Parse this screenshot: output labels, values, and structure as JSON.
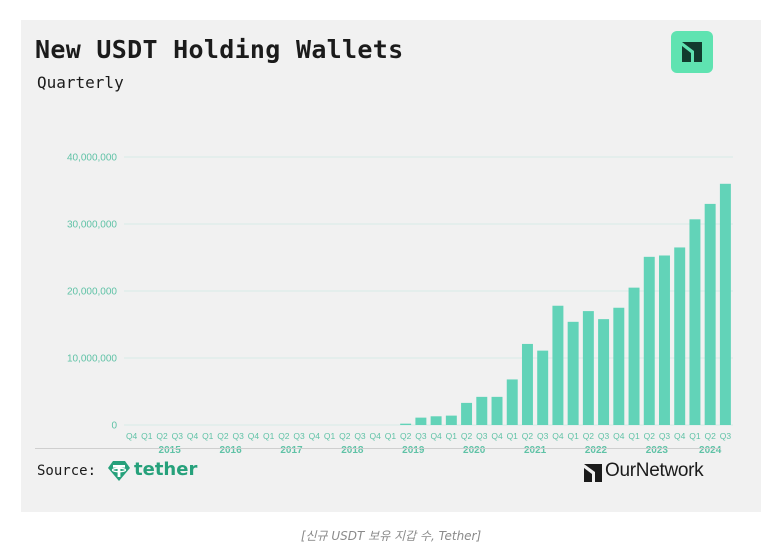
{
  "header": {
    "title": "New USDT Holding Wallets",
    "subtitle": "Quarterly",
    "logo_icon": "ournetwork-logo-icon"
  },
  "footer": {
    "source_label": "Source:",
    "source_brand": "tether",
    "source_icon": "tether-logo-icon",
    "publisher": "OurNetwork",
    "publisher_icon": "ournetwork-logo-icon"
  },
  "caption": "[신규 USDT 보유 지갑 수, Tether]",
  "colors": {
    "bar": "#62d3b8",
    "gridline": "#d7ece6",
    "tick": "#5fc2a6",
    "badge": "#5fe3b1",
    "tether_green": "#26a17b"
  },
  "chart_data": {
    "type": "bar",
    "title": "New USDT Holding Wallets",
    "subtitle": "Quarterly",
    "ylim": [
      0,
      40000000
    ],
    "yticks": [
      0,
      10000000,
      20000000,
      30000000,
      40000000
    ],
    "ytick_labels": [
      "0",
      "10,000,000",
      "20,000,000",
      "30,000,000",
      "40,000,000"
    ],
    "grid": true,
    "categories": [
      "Q4",
      "Q1",
      "Q2",
      "Q3",
      "Q4",
      "Q1",
      "Q2",
      "Q3",
      "Q4",
      "Q1",
      "Q2",
      "Q3",
      "Q4",
      "Q1",
      "Q2",
      "Q3",
      "Q4",
      "Q1",
      "Q2",
      "Q3",
      "Q4",
      "Q1",
      "Q2",
      "Q3",
      "Q4",
      "Q1",
      "Q2",
      "Q3",
      "Q4",
      "Q1",
      "Q2",
      "Q3",
      "Q4",
      "Q1",
      "Q2",
      "Q3",
      "Q4",
      "Q1",
      "Q2",
      "Q3"
    ],
    "year_labels": [
      {
        "label": "2015",
        "from": 1,
        "to": 4
      },
      {
        "label": "2016",
        "from": 5,
        "to": 8
      },
      {
        "label": "2017",
        "from": 9,
        "to": 12
      },
      {
        "label": "2018",
        "from": 13,
        "to": 16
      },
      {
        "label": "2019",
        "from": 17,
        "to": 20
      },
      {
        "label": "2020",
        "from": 21,
        "to": 24
      },
      {
        "label": "2021",
        "from": 25,
        "to": 28
      },
      {
        "label": "2022",
        "from": 29,
        "to": 32
      },
      {
        "label": "2023",
        "from": 33,
        "to": 36
      },
      {
        "label": "2024",
        "from": 37,
        "to": 39
      }
    ],
    "values": [
      0,
      0,
      0,
      0,
      0,
      0,
      0,
      0,
      0,
      0,
      0,
      0,
      0,
      0,
      0,
      0,
      0,
      0,
      200000,
      1100000,
      1300000,
      1400000,
      3300000,
      4200000,
      4200000,
      6800000,
      12100000,
      11100000,
      17800000,
      15400000,
      17000000,
      15800000,
      17500000,
      20500000,
      25100000,
      25300000,
      26500000,
      30700000,
      33000000,
      36000000
    ]
  }
}
